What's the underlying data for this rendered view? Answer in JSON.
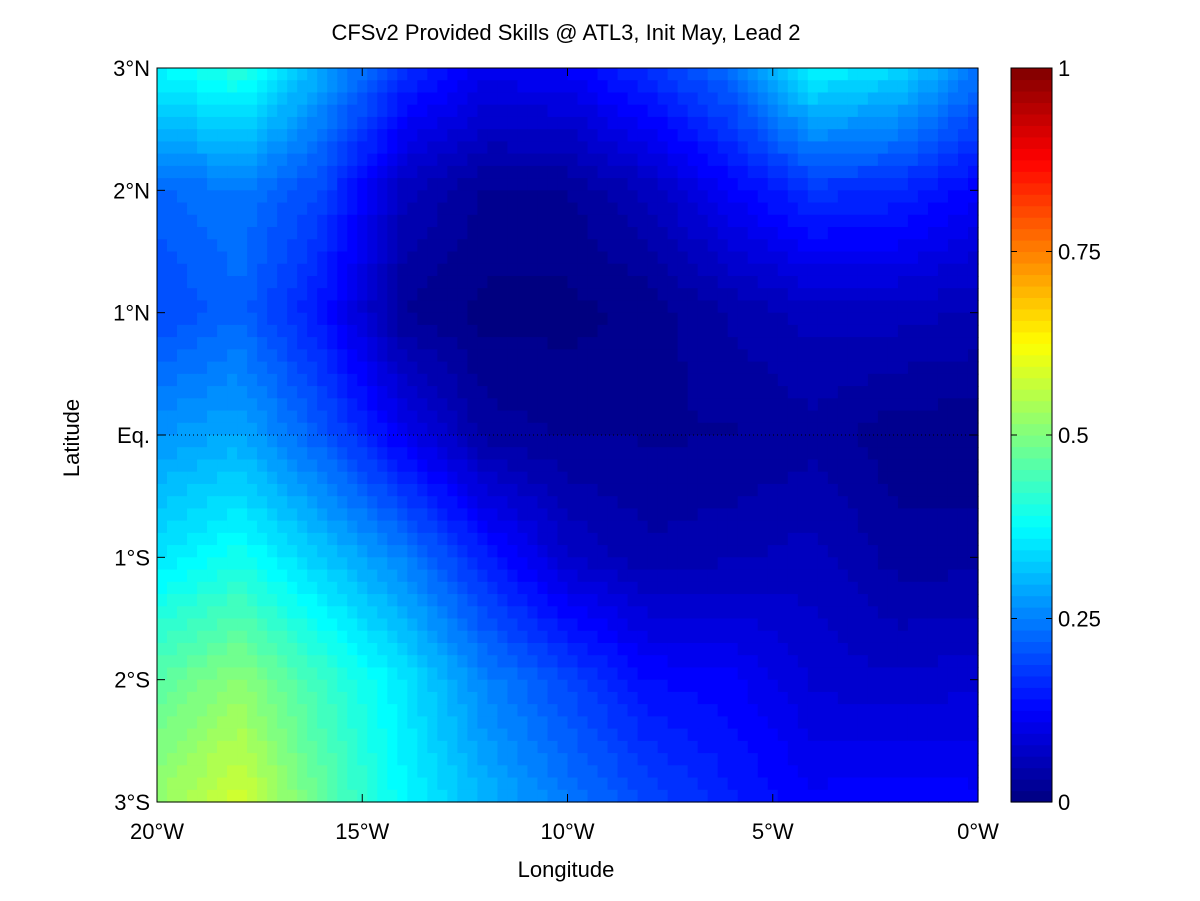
{
  "chart_data": {
    "type": "heatmap",
    "title": "CFSv2 Provided Skills @ ATL3, Init May, Lead 2",
    "xlabel": "Longitude",
    "ylabel": "Latitude",
    "xlim": [
      -20,
      0
    ],
    "ylim": [
      -3,
      3
    ],
    "x_ticks": [
      {
        "value": -20,
        "label": "20°W"
      },
      {
        "value": -15,
        "label": "15°W"
      },
      {
        "value": -10,
        "label": "10°W"
      },
      {
        "value": -5,
        "label": "5°W"
      },
      {
        "value": 0,
        "label": "0°W"
      }
    ],
    "y_ticks": [
      {
        "value": 3,
        "label": "3°N"
      },
      {
        "value": 2,
        "label": "2°N"
      },
      {
        "value": 1,
        "label": "1°N"
      },
      {
        "value": 0,
        "label": "Eq."
      },
      {
        "value": -1,
        "label": "1°S"
      },
      {
        "value": -2,
        "label": "2°S"
      },
      {
        "value": -3,
        "label": "3°S"
      }
    ],
    "colorbar": {
      "range": [
        0,
        1
      ],
      "colormap": "jet",
      "ticks": [
        {
          "value": 0,
          "label": "0"
        },
        {
          "value": 0.25,
          "label": "0.25"
        },
        {
          "value": 0.5,
          "label": "0.5"
        },
        {
          "value": 0.75,
          "label": "0.75"
        },
        {
          "value": 1,
          "label": "1"
        }
      ]
    },
    "x": [
      -20,
      -18,
      -16,
      -14,
      -12,
      -10,
      -8,
      -6,
      -4,
      -2,
      0
    ],
    "y": [
      3,
      2,
      1,
      0,
      -1,
      -2,
      -3
    ],
    "z": [
      [
        0.38,
        0.42,
        0.3,
        0.18,
        0.12,
        0.13,
        0.18,
        0.24,
        0.38,
        0.35,
        0.25
      ],
      [
        0.23,
        0.25,
        0.2,
        0.07,
        0.03,
        0.03,
        0.07,
        0.13,
        0.18,
        0.17,
        0.13
      ],
      [
        0.2,
        0.23,
        0.15,
        0.03,
        0.01,
        0.01,
        0.02,
        0.05,
        0.07,
        0.07,
        0.06
      ],
      [
        0.28,
        0.3,
        0.22,
        0.12,
        0.04,
        0.03,
        0.03,
        0.03,
        0.04,
        0.02,
        0.02
      ],
      [
        0.36,
        0.4,
        0.33,
        0.26,
        0.16,
        0.08,
        0.05,
        0.06,
        0.07,
        0.04,
        0.04
      ],
      [
        0.47,
        0.52,
        0.44,
        0.36,
        0.26,
        0.2,
        0.14,
        0.13,
        0.09,
        0.08,
        0.09
      ],
      [
        0.53,
        0.59,
        0.48,
        0.38,
        0.31,
        0.25,
        0.2,
        0.16,
        0.13,
        0.14,
        0.13
      ]
    ],
    "equator_line": true,
    "grid": false
  }
}
